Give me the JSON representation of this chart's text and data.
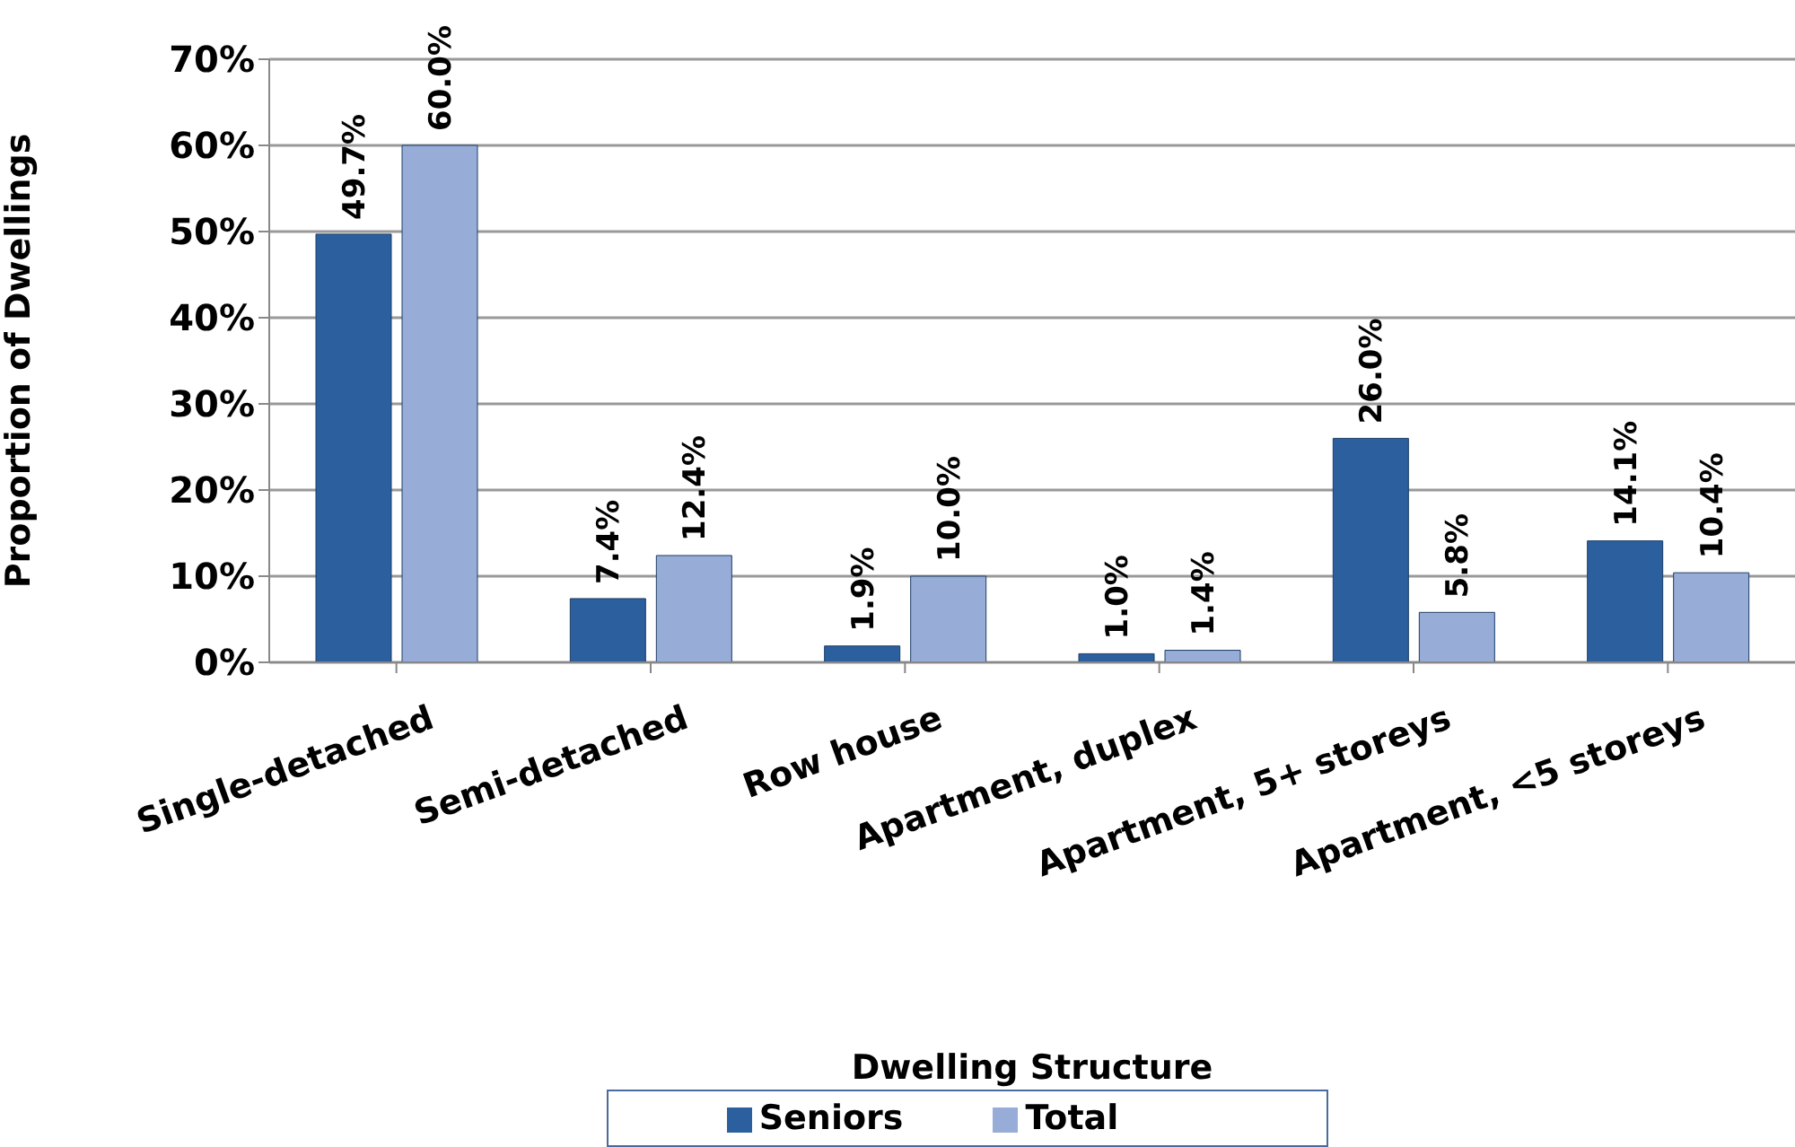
{
  "chart_data": {
    "type": "bar",
    "xlabel": "Dwelling Structure",
    "ylabel": "Proportion of Dwellings",
    "categories": [
      "Single-detached",
      "Semi-detached",
      "Row house",
      "Apartment, duplex",
      "Apartment, 5+ storeys",
      "Apartment, <5 storeys"
    ],
    "series": [
      {
        "name": "Seniors",
        "color": "#2b5f9e",
        "values": [
          49.7,
          7.4,
          1.9,
          1.0,
          26.0,
          14.1
        ],
        "value_labels": [
          "49.7%",
          "7.4%",
          "1.9%",
          "1.0%",
          "26.0%",
          "14.1%"
        ]
      },
      {
        "name": "Total",
        "color": "#97acd6",
        "values": [
          60.0,
          12.4,
          10.0,
          1.4,
          5.8,
          10.4
        ],
        "value_labels": [
          "60.0%",
          "12.4%",
          "10.0%",
          "1.4%",
          "5.8%",
          "10.4%"
        ]
      }
    ],
    "ylim": [
      0,
      70
    ],
    "yticks": [
      {
        "value": 0,
        "label": "0%"
      },
      {
        "value": 10,
        "label": "10%"
      },
      {
        "value": 20,
        "label": "20%"
      },
      {
        "value": 30,
        "label": "30%"
      },
      {
        "value": 40,
        "label": "40%"
      },
      {
        "value": 50,
        "label": "50%"
      },
      {
        "value": 60,
        "label": "60%"
      },
      {
        "value": 70,
        "label": "70%"
      }
    ],
    "grid": "y",
    "legend": "bottom"
  }
}
